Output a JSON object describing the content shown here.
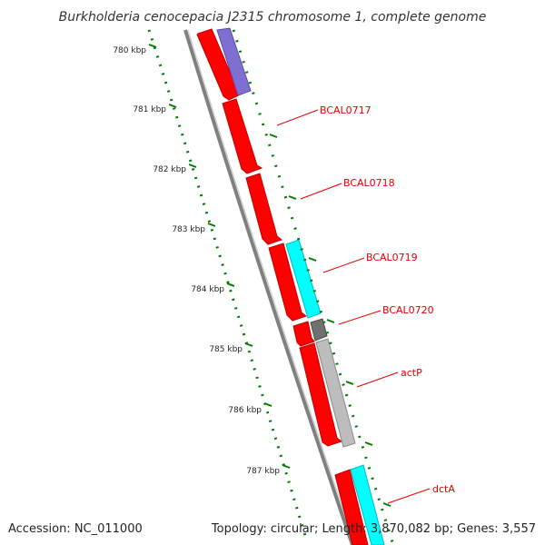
{
  "title": "Burkholderia cenocepacia J2315 chromosome 1, complete genome",
  "footer": {
    "accession": "Accession: NC_011000",
    "topology": "Topology: circular; Length: 3,870,082 bp; Genes: 3,557"
  },
  "colors": {
    "background": "#ffffff",
    "backbone": "#808080",
    "cds": "#ff0000",
    "blast_purple": "#7f6fd0",
    "blast_cyan": "#00ffff",
    "blast_gray": "#bdbdbd",
    "blast_darkgray": "#707070",
    "tick": "#007a00",
    "label": "#e00000"
  },
  "ticks": [
    {
      "label": "780 kbp"
    },
    {
      "label": "781 kbp"
    },
    {
      "label": "782 kbp"
    },
    {
      "label": "783 kbp"
    },
    {
      "label": "784 kbp"
    },
    {
      "label": "785 kbp"
    },
    {
      "label": "786 kbp"
    },
    {
      "label": "787 kbp"
    }
  ],
  "gene_labels": [
    {
      "name": "BCAL0717"
    },
    {
      "name": "BCAL0718"
    },
    {
      "name": "BCAL0719"
    },
    {
      "name": "BCAL0720"
    },
    {
      "name": "actP"
    },
    {
      "name": "dctA"
    }
  ]
}
